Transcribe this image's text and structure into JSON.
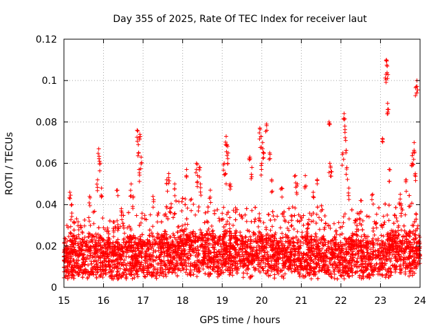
{
  "chart_data": {
    "type": "scatter",
    "title": "Day 355 of 2025, Rate Of TEC Index for receiver laut",
    "xlabel": "GPS time / hours",
    "ylabel": "ROTI / TECUs",
    "xlim": [
      15,
      24
    ],
    "ylim": [
      0,
      0.12
    ],
    "xticks": [
      15,
      16,
      17,
      18,
      19,
      20,
      21,
      22,
      23,
      24
    ],
    "yticks": [
      0,
      0.02,
      0.04,
      0.06,
      0.08,
      0.1,
      0.12
    ],
    "ytick_labels": [
      "0",
      "0.02",
      "0.04",
      "0.06",
      "0.08",
      "0.1",
      "0.12"
    ],
    "grid": true,
    "marker": "+",
    "color": "#ff0000",
    "series": [
      {
        "name": "ROTI",
        "envelope_hours": [
          15.0,
          15.25,
          15.5,
          15.75,
          16.0,
          16.25,
          16.5,
          16.75,
          17.0,
          17.25,
          17.5,
          17.75,
          18.0,
          18.25,
          18.5,
          18.75,
          19.0,
          19.25,
          19.5,
          19.75,
          20.0,
          20.25,
          20.5,
          20.75,
          21.0,
          21.25,
          21.5,
          21.75,
          22.0,
          22.25,
          22.5,
          22.75,
          23.0,
          23.25,
          23.5,
          23.75,
          24.0
        ],
        "envelope_median": [
          0.013,
          0.014,
          0.013,
          0.014,
          0.014,
          0.013,
          0.014,
          0.015,
          0.015,
          0.014,
          0.015,
          0.016,
          0.017,
          0.017,
          0.016,
          0.016,
          0.016,
          0.017,
          0.016,
          0.016,
          0.017,
          0.016,
          0.015,
          0.016,
          0.015,
          0.015,
          0.015,
          0.014,
          0.014,
          0.015,
          0.014,
          0.014,
          0.015,
          0.016,
          0.017,
          0.017,
          0.018
        ],
        "envelope_upper": [
          0.03,
          0.035,
          0.033,
          0.038,
          0.036,
          0.032,
          0.036,
          0.04,
          0.038,
          0.035,
          0.038,
          0.042,
          0.044,
          0.043,
          0.04,
          0.038,
          0.04,
          0.041,
          0.04,
          0.04,
          0.042,
          0.04,
          0.036,
          0.04,
          0.038,
          0.037,
          0.04,
          0.037,
          0.034,
          0.038,
          0.036,
          0.034,
          0.04,
          0.042,
          0.043,
          0.045,
          0.04
        ],
        "spikes": [
          {
            "x": 15.15,
            "y": 0.046
          },
          {
            "x": 15.2,
            "y": 0.04
          },
          {
            "x": 15.65,
            "y": 0.044
          },
          {
            "x": 15.88,
            "y": 0.067
          },
          {
            "x": 15.9,
            "y": 0.061
          },
          {
            "x": 15.85,
            "y": 0.052
          },
          {
            "x": 15.95,
            "y": 0.048
          },
          {
            "x": 16.35,
            "y": 0.047
          },
          {
            "x": 16.45,
            "y": 0.038
          },
          {
            "x": 16.7,
            "y": 0.05
          },
          {
            "x": 16.75,
            "y": 0.044
          },
          {
            "x": 16.85,
            "y": 0.076
          },
          {
            "x": 16.88,
            "y": 0.069
          },
          {
            "x": 16.92,
            "y": 0.074
          },
          {
            "x": 16.95,
            "y": 0.063
          },
          {
            "x": 16.9,
            "y": 0.057
          },
          {
            "x": 17.25,
            "y": 0.044
          },
          {
            "x": 17.6,
            "y": 0.052
          },
          {
            "x": 17.65,
            "y": 0.055
          },
          {
            "x": 17.8,
            "y": 0.05
          },
          {
            "x": 18.1,
            "y": 0.057
          },
          {
            "x": 18.35,
            "y": 0.06
          },
          {
            "x": 18.38,
            "y": 0.054
          },
          {
            "x": 18.42,
            "y": 0.058
          },
          {
            "x": 18.45,
            "y": 0.05
          },
          {
            "x": 18.7,
            "y": 0.047
          },
          {
            "x": 19.1,
            "y": 0.073
          },
          {
            "x": 19.12,
            "y": 0.069
          },
          {
            "x": 19.15,
            "y": 0.065
          },
          {
            "x": 19.05,
            "y": 0.06
          },
          {
            "x": 19.08,
            "y": 0.055
          },
          {
            "x": 19.2,
            "y": 0.05
          },
          {
            "x": 19.7,
            "y": 0.063
          },
          {
            "x": 19.75,
            "y": 0.058
          },
          {
            "x": 19.95,
            "y": 0.077
          },
          {
            "x": 19.98,
            "y": 0.073
          },
          {
            "x": 20.02,
            "y": 0.07
          },
          {
            "x": 20.05,
            "y": 0.065
          },
          {
            "x": 20.0,
            "y": 0.06
          },
          {
            "x": 20.12,
            "y": 0.079
          },
          {
            "x": 20.2,
            "y": 0.065
          },
          {
            "x": 20.25,
            "y": 0.052
          },
          {
            "x": 20.5,
            "y": 0.048
          },
          {
            "x": 20.85,
            "y": 0.054
          },
          {
            "x": 20.9,
            "y": 0.05
          },
          {
            "x": 21.1,
            "y": 0.054
          },
          {
            "x": 21.3,
            "y": 0.046
          },
          {
            "x": 21.4,
            "y": 0.052
          },
          {
            "x": 21.7,
            "y": 0.08
          },
          {
            "x": 21.72,
            "y": 0.06
          },
          {
            "x": 21.75,
            "y": 0.056
          },
          {
            "x": 22.08,
            "y": 0.084
          },
          {
            "x": 22.1,
            "y": 0.078
          },
          {
            "x": 22.12,
            "y": 0.071
          },
          {
            "x": 22.05,
            "y": 0.065
          },
          {
            "x": 22.15,
            "y": 0.058
          },
          {
            "x": 22.2,
            "y": 0.048
          },
          {
            "x": 22.5,
            "y": 0.042
          },
          {
            "x": 22.8,
            "y": 0.045
          },
          {
            "x": 23.05,
            "y": 0.072
          },
          {
            "x": 23.15,
            "y": 0.11
          },
          {
            "x": 23.17,
            "y": 0.107
          },
          {
            "x": 23.14,
            "y": 0.103
          },
          {
            "x": 23.18,
            "y": 0.089
          },
          {
            "x": 23.2,
            "y": 0.086
          },
          {
            "x": 23.22,
            "y": 0.057
          },
          {
            "x": 23.5,
            "y": 0.045
          },
          {
            "x": 23.65,
            "y": 0.052
          },
          {
            "x": 23.8,
            "y": 0.06
          },
          {
            "x": 23.82,
            "y": 0.065
          },
          {
            "x": 23.85,
            "y": 0.07
          },
          {
            "x": 23.88,
            "y": 0.055
          },
          {
            "x": 23.92,
            "y": 0.1
          },
          {
            "x": 23.9,
            "y": 0.097
          }
        ]
      }
    ]
  }
}
